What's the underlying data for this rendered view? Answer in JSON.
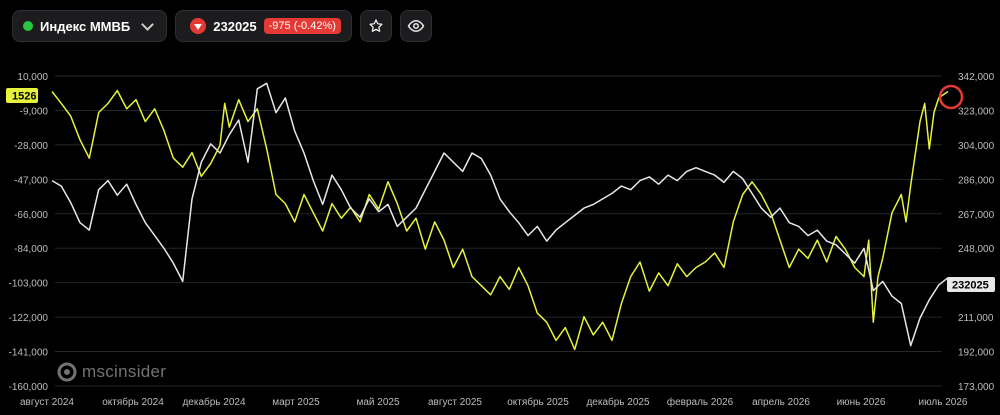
{
  "toolbar": {
    "instrument": "Индекс ММВБ",
    "price": "232025",
    "change": "-975 (-0.42%)",
    "colors": {
      "status_dot": "#28c840",
      "down": "#e53935"
    },
    "favorite_icon": "star-icon",
    "watch_icon": "eye-icon"
  },
  "watermark": "mscinsider",
  "chart_data": {
    "type": "line",
    "x_labels": [
      "август 2024",
      "октябрь 2024",
      "декабрь 2024",
      "март 2025",
      "май 2025",
      "август 2025",
      "октябрь 2025",
      "декабрь 2025",
      "февраль 2026",
      "апрель 2026",
      "июнь 2026",
      "июль 2026"
    ],
    "left_axis": {
      "ticks": [
        "10,000",
        "-9,000",
        "-28,000",
        "-47,000",
        "-66,000",
        "-84,000",
        "-103,000",
        "-122,000",
        "-141,000",
        "-160,000"
      ],
      "range": [
        -160000,
        10000
      ]
    },
    "right_axis": {
      "ticks": [
        "342,000",
        "323,000",
        "304,000",
        "286,000",
        "267,000",
        "248,000",
        "230,000",
        "211,000",
        "192,000",
        "173,000"
      ],
      "range": [
        173000,
        342000
      ]
    },
    "left_marker_label": "1526",
    "right_marker_label": "232025",
    "colors": {
      "yellow_series": "#e6f23c",
      "white_series": "#e8e8e8",
      "grid": "#262626",
      "highlight_circle": "#e53935"
    },
    "grid": true,
    "series": [
      {
        "axis": "left",
        "color": "#e6f23c",
        "points": [
          [
            0,
            1526
          ],
          [
            0.01,
            -5000
          ],
          [
            0.02,
            -12000
          ],
          [
            0.03,
            -25000
          ],
          [
            0.04,
            -35000
          ],
          [
            0.05,
            -10000
          ],
          [
            0.06,
            -5000
          ],
          [
            0.07,
            2000
          ],
          [
            0.08,
            -8000
          ],
          [
            0.09,
            -3000
          ],
          [
            0.1,
            -15000
          ],
          [
            0.11,
            -8000
          ],
          [
            0.12,
            -20000
          ],
          [
            0.13,
            -35000
          ],
          [
            0.14,
            -40000
          ],
          [
            0.15,
            -32000
          ],
          [
            0.16,
            -45000
          ],
          [
            0.17,
            -38000
          ],
          [
            0.18,
            -28000
          ],
          [
            0.185,
            -5000
          ],
          [
            0.19,
            -18000
          ],
          [
            0.2,
            -3000
          ],
          [
            0.21,
            -15000
          ],
          [
            0.22,
            -8000
          ],
          [
            0.23,
            -30000
          ],
          [
            0.24,
            -55000
          ],
          [
            0.25,
            -60000
          ],
          [
            0.26,
            -70000
          ],
          [
            0.27,
            -55000
          ],
          [
            0.28,
            -65000
          ],
          [
            0.29,
            -75000
          ],
          [
            0.3,
            -60000
          ],
          [
            0.31,
            -68000
          ],
          [
            0.32,
            -62000
          ],
          [
            0.33,
            -70000
          ],
          [
            0.34,
            -55000
          ],
          [
            0.35,
            -63000
          ],
          [
            0.36,
            -48000
          ],
          [
            0.37,
            -60000
          ],
          [
            0.38,
            -75000
          ],
          [
            0.39,
            -68000
          ],
          [
            0.4,
            -85000
          ],
          [
            0.41,
            -70000
          ],
          [
            0.42,
            -80000
          ],
          [
            0.43,
            -95000
          ],
          [
            0.44,
            -85000
          ],
          [
            0.45,
            -100000
          ],
          [
            0.46,
            -105000
          ],
          [
            0.47,
            -110000
          ],
          [
            0.48,
            -100000
          ],
          [
            0.49,
            -107000
          ],
          [
            0.5,
            -95000
          ],
          [
            0.51,
            -105000
          ],
          [
            0.52,
            -120000
          ],
          [
            0.53,
            -125000
          ],
          [
            0.54,
            -135000
          ],
          [
            0.55,
            -128000
          ],
          [
            0.56,
            -140000
          ],
          [
            0.57,
            -122000
          ],
          [
            0.58,
            -132000
          ],
          [
            0.59,
            -125000
          ],
          [
            0.6,
            -135000
          ],
          [
            0.61,
            -115000
          ],
          [
            0.62,
            -100000
          ],
          [
            0.63,
            -92000
          ],
          [
            0.64,
            -108000
          ],
          [
            0.65,
            -98000
          ],
          [
            0.66,
            -105000
          ],
          [
            0.67,
            -93000
          ],
          [
            0.68,
            -100000
          ],
          [
            0.69,
            -95000
          ],
          [
            0.7,
            -92000
          ],
          [
            0.71,
            -87000
          ],
          [
            0.72,
            -95000
          ],
          [
            0.73,
            -70000
          ],
          [
            0.74,
            -55000
          ],
          [
            0.75,
            -48000
          ],
          [
            0.76,
            -55000
          ],
          [
            0.77,
            -65000
          ],
          [
            0.78,
            -80000
          ],
          [
            0.79,
            -95000
          ],
          [
            0.8,
            -85000
          ],
          [
            0.81,
            -90000
          ],
          [
            0.82,
            -80000
          ],
          [
            0.83,
            -92000
          ],
          [
            0.84,
            -78000
          ],
          [
            0.85,
            -85000
          ],
          [
            0.86,
            -95000
          ],
          [
            0.87,
            -100000
          ],
          [
            0.875,
            -80000
          ],
          [
            0.88,
            -125000
          ],
          [
            0.885,
            -100000
          ],
          [
            0.89,
            -90000
          ],
          [
            0.9,
            -65000
          ],
          [
            0.91,
            -55000
          ],
          [
            0.915,
            -70000
          ],
          [
            0.92,
            -50000
          ],
          [
            0.93,
            -15000
          ],
          [
            0.935,
            -5000
          ],
          [
            0.94,
            -30000
          ],
          [
            0.945,
            -10000
          ],
          [
            0.95,
            -2000
          ],
          [
            0.96,
            1526
          ]
        ]
      },
      {
        "axis": "right",
        "color": "#e8e8e8",
        "points": [
          [
            0,
            285000
          ],
          [
            0.01,
            282000
          ],
          [
            0.02,
            273000
          ],
          [
            0.03,
            262000
          ],
          [
            0.04,
            258000
          ],
          [
            0.05,
            280000
          ],
          [
            0.06,
            285000
          ],
          [
            0.07,
            277000
          ],
          [
            0.08,
            283000
          ],
          [
            0.09,
            272000
          ],
          [
            0.1,
            262000
          ],
          [
            0.11,
            255000
          ],
          [
            0.12,
            248000
          ],
          [
            0.13,
            240000
          ],
          [
            0.14,
            230000
          ],
          [
            0.15,
            275000
          ],
          [
            0.16,
            295000
          ],
          [
            0.17,
            305000
          ],
          [
            0.18,
            300000
          ],
          [
            0.19,
            310000
          ],
          [
            0.2,
            318000
          ],
          [
            0.21,
            295000
          ],
          [
            0.22,
            335000
          ],
          [
            0.23,
            338000
          ],
          [
            0.24,
            322000
          ],
          [
            0.25,
            330000
          ],
          [
            0.26,
            312000
          ],
          [
            0.27,
            300000
          ],
          [
            0.28,
            285000
          ],
          [
            0.29,
            272000
          ],
          [
            0.3,
            288000
          ],
          [
            0.31,
            280000
          ],
          [
            0.32,
            270000
          ],
          [
            0.33,
            265000
          ],
          [
            0.34,
            275000
          ],
          [
            0.35,
            268000
          ],
          [
            0.36,
            272000
          ],
          [
            0.37,
            260000
          ],
          [
            0.38,
            265000
          ],
          [
            0.39,
            270000
          ],
          [
            0.4,
            280000
          ],
          [
            0.41,
            290000
          ],
          [
            0.42,
            300000
          ],
          [
            0.43,
            295000
          ],
          [
            0.44,
            290000
          ],
          [
            0.45,
            300000
          ],
          [
            0.46,
            297000
          ],
          [
            0.47,
            288000
          ],
          [
            0.48,
            275000
          ],
          [
            0.49,
            268000
          ],
          [
            0.5,
            262000
          ],
          [
            0.51,
            255000
          ],
          [
            0.52,
            260000
          ],
          [
            0.53,
            252000
          ],
          [
            0.54,
            258000
          ],
          [
            0.55,
            262000
          ],
          [
            0.56,
            266000
          ],
          [
            0.57,
            270000
          ],
          [
            0.58,
            272000
          ],
          [
            0.59,
            275000
          ],
          [
            0.6,
            278000
          ],
          [
            0.61,
            282000
          ],
          [
            0.62,
            280000
          ],
          [
            0.63,
            285000
          ],
          [
            0.64,
            287000
          ],
          [
            0.65,
            283000
          ],
          [
            0.66,
            288000
          ],
          [
            0.67,
            285000
          ],
          [
            0.68,
            290000
          ],
          [
            0.69,
            292000
          ],
          [
            0.7,
            290000
          ],
          [
            0.71,
            288000
          ],
          [
            0.72,
            284000
          ],
          [
            0.73,
            290000
          ],
          [
            0.74,
            286000
          ],
          [
            0.75,
            278000
          ],
          [
            0.76,
            270000
          ],
          [
            0.77,
            265000
          ],
          [
            0.78,
            270000
          ],
          [
            0.79,
            262000
          ],
          [
            0.8,
            260000
          ],
          [
            0.81,
            255000
          ],
          [
            0.82,
            258000
          ],
          [
            0.83,
            252000
          ],
          [
            0.84,
            250000
          ],
          [
            0.85,
            245000
          ],
          [
            0.86,
            240000
          ],
          [
            0.87,
            248000
          ],
          [
            0.88,
            225000
          ],
          [
            0.89,
            230000
          ],
          [
            0.9,
            222000
          ],
          [
            0.91,
            218000
          ],
          [
            0.92,
            195000
          ],
          [
            0.93,
            210000
          ],
          [
            0.94,
            220000
          ],
          [
            0.95,
            228000
          ],
          [
            0.96,
            232025
          ]
        ]
      }
    ]
  }
}
